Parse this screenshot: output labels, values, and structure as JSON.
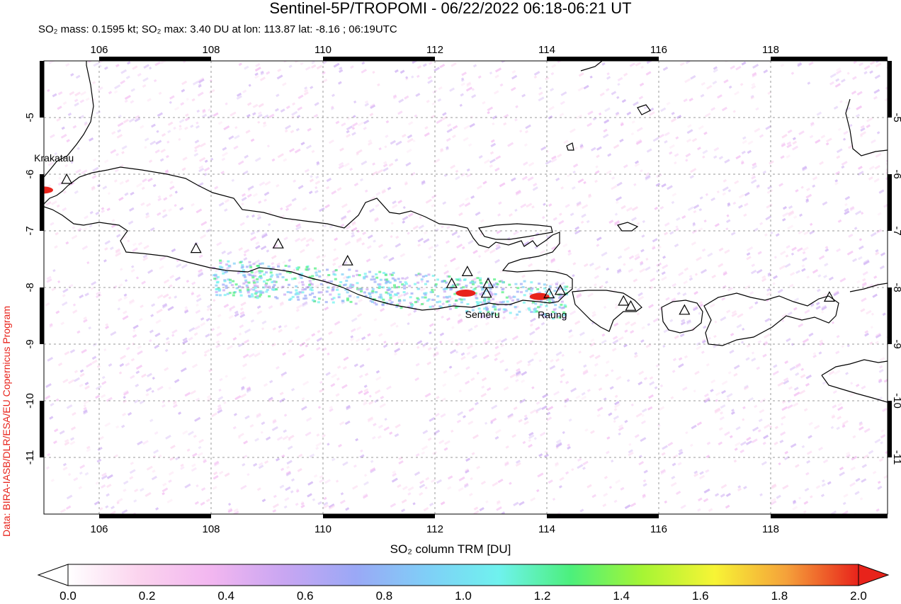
{
  "title": "Sentinel-5P/TROPOMI - 06/22/2022 06:18-06:21 UT",
  "subtitle": {
    "mass_label": "SO₂ mass:",
    "mass_value": "0.1595 kt;",
    "max_label": "SO₂ max:",
    "max_value": "3.40 DU",
    "loc": "at lon: 113.87 lat: -8.16 ; 06:19UTC"
  },
  "credit": "Data: BIRA-IASB/DLR/ESA/EU Copernicus Program",
  "map": {
    "lon_range": [
      104.9,
      120.0
    ],
    "lat_range": [
      -12.0,
      -4.0
    ],
    "lon_ticks": [
      "106",
      "108",
      "110",
      "112",
      "114",
      "116",
      "118"
    ],
    "lat_ticks": [
      "-5",
      "-6",
      "-7",
      "-8",
      "-9",
      "-10",
      "-11"
    ],
    "volcanoes": [
      {
        "name": "Krakatau",
        "lon": 105.42,
        "lat": -6.1
      },
      {
        "name": "",
        "lon": 107.73,
        "lat": -7.32
      },
      {
        "name": "",
        "lon": 109.2,
        "lat": -7.24
      },
      {
        "name": "",
        "lon": 110.44,
        "lat": -7.54
      },
      {
        "name": "",
        "lon": 112.3,
        "lat": -7.94
      },
      {
        "name": "",
        "lon": 112.58,
        "lat": -7.73
      },
      {
        "name": "Semeru",
        "lon": 112.92,
        "lat": -8.11
      },
      {
        "name": "",
        "lon": 112.95,
        "lat": -7.94
      },
      {
        "name": "Raung",
        "lon": 114.04,
        "lat": -8.12
      },
      {
        "name": "",
        "lon": 114.24,
        "lat": -8.06
      },
      {
        "name": "",
        "lon": 115.37,
        "lat": -8.25
      },
      {
        "name": "",
        "lon": 115.5,
        "lat": -8.34
      },
      {
        "name": "",
        "lon": 116.46,
        "lat": -8.41
      },
      {
        "name": "",
        "lon": 119.05,
        "lat": -8.18
      }
    ],
    "so2_hotspots": [
      {
        "lon": 105.0,
        "lat": -6.28,
        "du": 2.0
      },
      {
        "lon": 113.87,
        "lat": -8.16,
        "du": 2.0
      },
      {
        "lon": 112.55,
        "lat": -8.1,
        "du": 1.9
      }
    ],
    "colors": {
      "coast": "#000000",
      "grid": "#999999"
    }
  },
  "colorbar": {
    "title": "SO₂ column TRM [DU]",
    "range": [
      0.0,
      2.0
    ],
    "ticks": [
      "0.0",
      "0.2",
      "0.4",
      "0.6",
      "0.8",
      "1.0",
      "1.2",
      "1.4",
      "1.6",
      "1.8",
      "2.0"
    ],
    "under_color": "#ffffff",
    "over_color": "#e8231b",
    "stops": [
      "#ffffff",
      "#fbd3ee",
      "#f2b6f0",
      "#c9a6f2",
      "#9aa8f6",
      "#7fcff7",
      "#6ff2ee",
      "#4cf07c",
      "#a6f534",
      "#f7f435",
      "#f5a13a",
      "#e8231b"
    ]
  }
}
